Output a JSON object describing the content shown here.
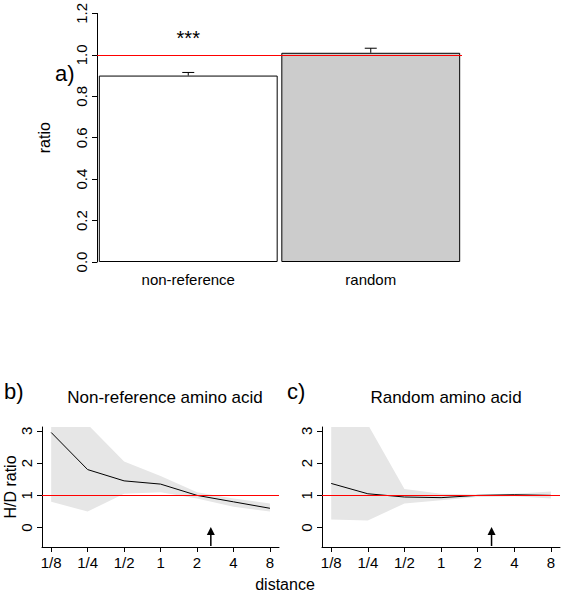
{
  "chart_data": [
    {
      "type": "bar",
      "panel_label": "a)",
      "y_label": "ratio",
      "categories": [
        "non-reference",
        "random"
      ],
      "values": [
        0.9,
        1.01
      ],
      "errors": [
        0.015,
        0.022
      ],
      "significance": [
        "***",
        null
      ],
      "colors": [
        "#ffffff",
        "#cccccc"
      ],
      "reference_line": 1,
      "ylim": [
        0,
        1.2
      ],
      "yticks": [
        {
          "value": 0,
          "label": "0.0"
        },
        {
          "value": 0.2,
          "label": "0.2"
        },
        {
          "value": 0.4,
          "label": "0.4"
        },
        {
          "value": 0.6,
          "label": "0.6"
        },
        {
          "value": 0.8,
          "label": "0.8"
        },
        {
          "value": 1,
          "label": "1.0"
        },
        {
          "value": 1.2,
          "label": "1.2"
        }
      ],
      "grid": false
    },
    {
      "type": "line",
      "panel_label": "b)",
      "title": "Non-reference amino acid",
      "x_label": "distance",
      "y_label": "H/D ratio",
      "x": [
        0.125,
        0.25,
        0.5,
        1,
        2,
        4,
        8
      ],
      "values": [
        2.95,
        1.8,
        1.45,
        1.35,
        1.0,
        0.8,
        0.6
      ],
      "lower": [
        0.8,
        0.5,
        1.05,
        1.1,
        0.9,
        0.65,
        0.5
      ],
      "upper": [
        3.2,
        3.2,
        2.05,
        1.6,
        1.1,
        0.9,
        0.75
      ],
      "color": "#000000",
      "reference_line": 1,
      "arrow_x": 2.6,
      "log": "x",
      "xlim": [
        0.105,
        9.5
      ],
      "xticks": [
        {
          "value": 0.125,
          "label": "1/8"
        },
        {
          "value": 0.25,
          "label": "1/4"
        },
        {
          "value": 0.5,
          "label": "1/2"
        },
        1,
        2,
        4,
        8
      ],
      "ylim": [
        -0.6,
        3.12
      ],
      "yticks": [
        0,
        1,
        2,
        3
      ],
      "grid": false
    },
    {
      "type": "line",
      "panel_label": "c)",
      "title": "Random amino acid",
      "x": [
        0.125,
        0.25,
        0.5,
        1,
        2,
        4,
        8
      ],
      "values": [
        1.37,
        1.05,
        0.95,
        0.93,
        1.0,
        1.02,
        1.0
      ],
      "lower": [
        0.25,
        0.22,
        0.75,
        0.85,
        0.95,
        0.97,
        0.9
      ],
      "upper": [
        3.2,
        3.2,
        1.2,
        1.05,
        1.03,
        1.05,
        1.12
      ],
      "color": "#000000",
      "reference_line": 1,
      "arrow_x": 2.6,
      "log": "x",
      "xlim": [
        0.105,
        9.5
      ],
      "xticks": [
        {
          "value": 0.125,
          "label": "1/8"
        },
        {
          "value": 0.25,
          "label": "1/4"
        },
        {
          "value": 0.5,
          "label": "1/2"
        },
        1,
        2,
        4,
        8
      ],
      "ylim": [
        -0.6,
        3.12
      ],
      "yticks": [
        0,
        1,
        2,
        3
      ],
      "grid": false
    }
  ]
}
